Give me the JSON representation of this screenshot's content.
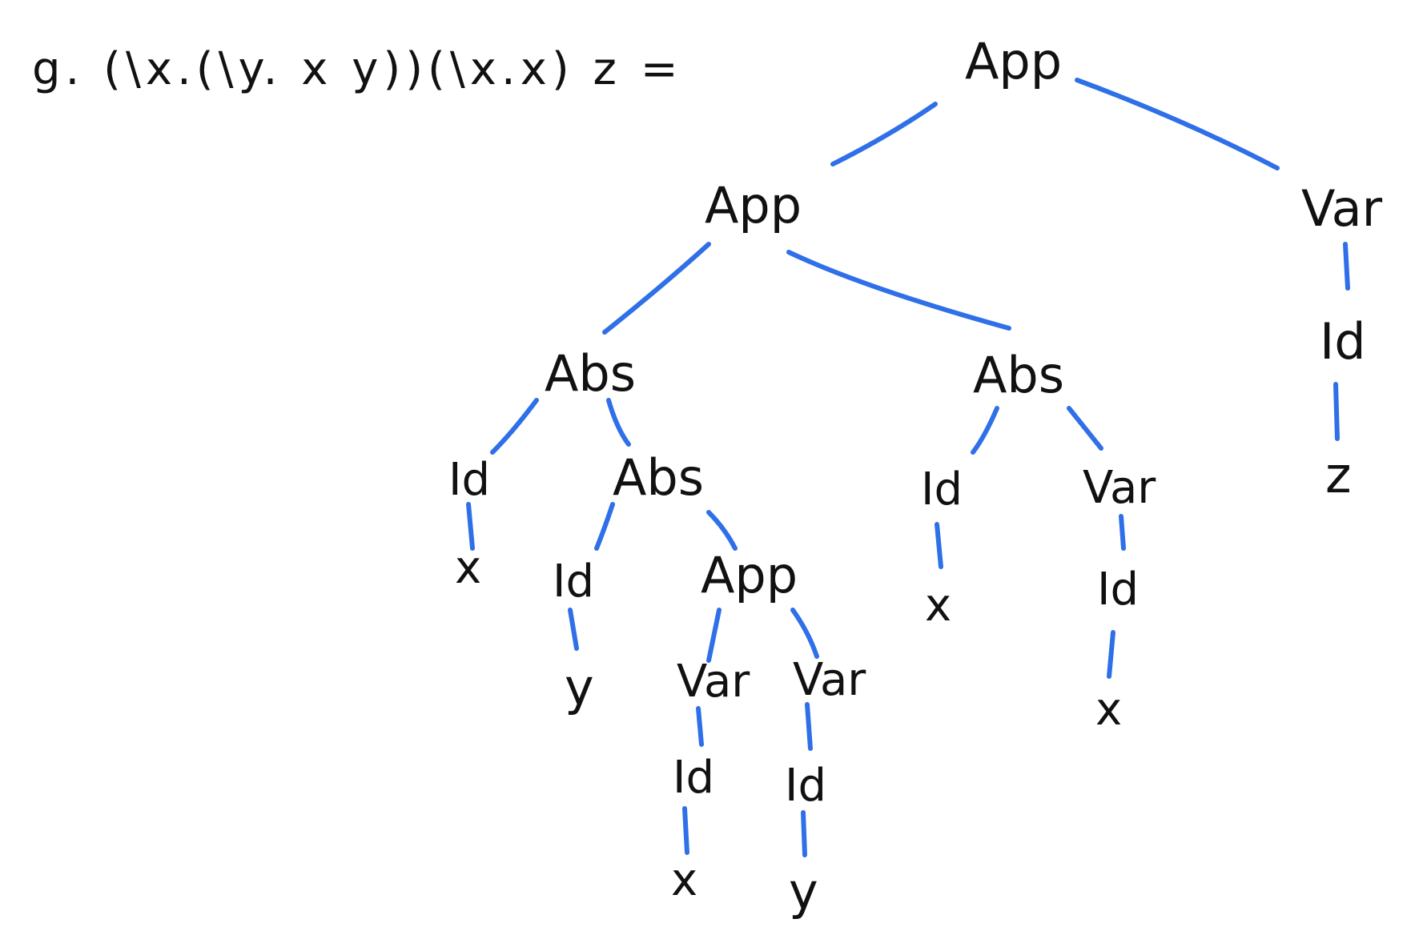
{
  "expression": "g. (\\x.(\\y. x y))(\\x.x) z =",
  "colors": {
    "edge": "#2f6fe8",
    "text": "#111111",
    "background": "#ffffff"
  },
  "nodes": {
    "root": "App",
    "left_app": "App",
    "right_var": "Var",
    "right_id": "Id",
    "right_z": "z",
    "abs1": "Abs",
    "abs1_id": "Id",
    "abs1_x": "x",
    "abs2": "Abs",
    "abs2_id": "Id",
    "abs2_y": "y",
    "inner_app": "App",
    "inner_var1": "Var",
    "inner_id1": "Id",
    "inner_x": "x",
    "inner_var2": "Var",
    "inner_id2": "Id",
    "inner_y": "y",
    "abs3": "Abs",
    "abs3_id": "Id",
    "abs3_x": "x",
    "abs3_var": "Var",
    "abs3_var_id": "Id",
    "abs3_var_x": "x"
  }
}
